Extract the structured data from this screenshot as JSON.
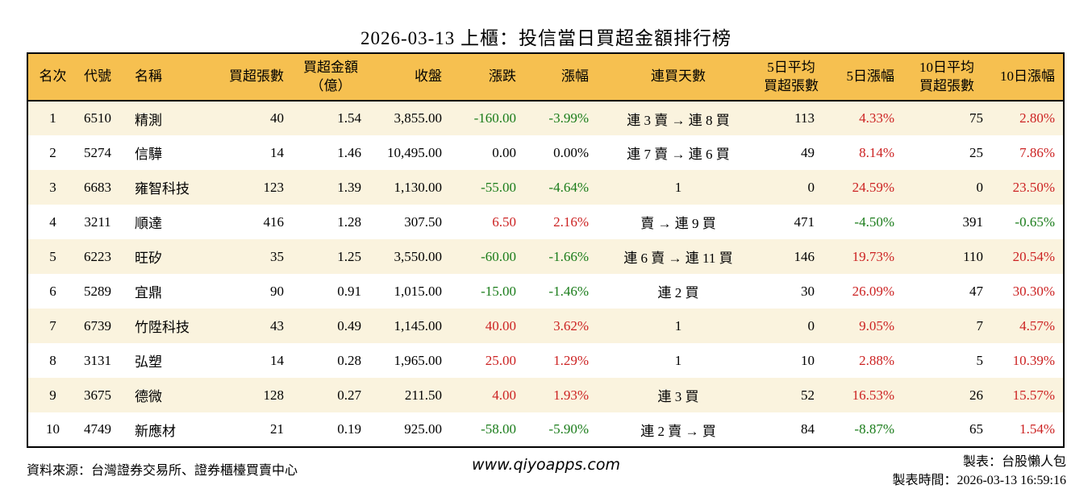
{
  "colors": {
    "up": "#cc2222",
    "down": "#1a7c1a",
    "header_bg": "#f6c050",
    "row_alt_bg": "#faf3de",
    "border": "#000000"
  },
  "chart_data": {
    "type": "table",
    "title": "2026-03-13 上櫃：投信當日買超金額排行榜",
    "columns": [
      "名次",
      "代號",
      "名稱",
      "買超張數",
      "買超金額\n（億）",
      "收盤",
      "漲跌",
      "漲幅",
      "連買天數",
      "5日平均\n買超張數",
      "5日漲幅",
      "10日平均\n買超張數",
      "10日漲幅"
    ],
    "rows": [
      [
        "1",
        "6510",
        "精測",
        "40",
        "1.54",
        "3,855.00",
        "-160.00",
        "-3.99%",
        "連 3 賣 → 連 8 買",
        "113",
        "4.33%",
        "75",
        "2.80%"
      ],
      [
        "2",
        "5274",
        "信驊",
        "14",
        "1.46",
        "10,495.00",
        "0.00",
        "0.00%",
        "連 7 賣 → 連 6 買",
        "49",
        "8.14%",
        "25",
        "7.86%"
      ],
      [
        "3",
        "6683",
        "雍智科技",
        "123",
        "1.39",
        "1,130.00",
        "-55.00",
        "-4.64%",
        "1",
        "0",
        "24.59%",
        "0",
        "23.50%"
      ],
      [
        "4",
        "3211",
        "順達",
        "416",
        "1.28",
        "307.50",
        "6.50",
        "2.16%",
        "賣 → 連 9 買",
        "471",
        "-4.50%",
        "391",
        "-0.65%"
      ],
      [
        "5",
        "6223",
        "旺矽",
        "35",
        "1.25",
        "3,550.00",
        "-60.00",
        "-1.66%",
        "連 6 賣 → 連 11 買",
        "146",
        "19.73%",
        "110",
        "20.54%"
      ],
      [
        "6",
        "5289",
        "宜鼎",
        "90",
        "0.91",
        "1,015.00",
        "-15.00",
        "-1.46%",
        "連 2 買",
        "30",
        "26.09%",
        "47",
        "30.30%"
      ],
      [
        "7",
        "6739",
        "竹陞科技",
        "43",
        "0.49",
        "1,145.00",
        "40.00",
        "3.62%",
        "1",
        "0",
        "9.05%",
        "7",
        "4.57%"
      ],
      [
        "8",
        "3131",
        "弘塑",
        "14",
        "0.28",
        "1,965.00",
        "25.00",
        "1.29%",
        "1",
        "10",
        "2.88%",
        "5",
        "10.39%"
      ],
      [
        "9",
        "3675",
        "德微",
        "128",
        "0.27",
        "211.50",
        "4.00",
        "1.93%",
        "連 3 買",
        "52",
        "16.53%",
        "26",
        "15.57%"
      ],
      [
        "10",
        "4749",
        "新應材",
        "21",
        "0.19",
        "925.00",
        "-58.00",
        "-5.90%",
        "連 2 賣 → 買",
        "84",
        "-8.87%",
        "65",
        "1.54%"
      ]
    ]
  },
  "footer": {
    "source": "資料來源：台灣證券交易所、證券櫃檯買賣中心",
    "site": "www.qiyoapps.com",
    "made_by": "製表：台股懶人包",
    "made_at": "製表時間：2026-03-13 16:59:16"
  }
}
